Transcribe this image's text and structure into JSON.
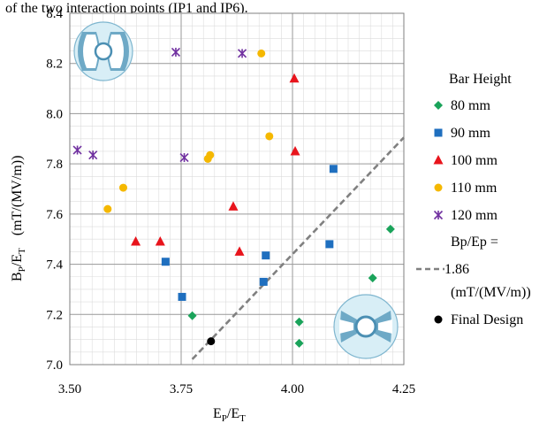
{
  "header_text": "of the two interaction points (IP1 and IP6).",
  "chart_data": {
    "type": "scatter",
    "xlabel": {
      "main": "E",
      "sub1": "P",
      "mid": "/E",
      "sub2": "T"
    },
    "ylabel": {
      "main": "B",
      "sub1": "P",
      "mid": "/E",
      "sub2": "T",
      "units": "(mT/(MV/m))"
    },
    "xlim": [
      3.5,
      4.25
    ],
    "ylim": [
      7.0,
      8.4
    ],
    "x_ticks": [
      "3.50",
      "3.75",
      "4.00",
      "4.25"
    ],
    "y_ticks": [
      "7.0",
      "7.2",
      "7.4",
      "7.6",
      "7.8",
      "8.0",
      "8.2",
      "8.4"
    ],
    "grid": true,
    "legend_title": "Bar Height",
    "series": [
      {
        "name": "80 mm",
        "marker": "diamond",
        "color": "#1aa35a",
        "points": [
          [
            3.775,
            7.195
          ],
          [
            4.015,
            7.17
          ],
          [
            4.015,
            7.085
          ],
          [
            4.18,
            7.345
          ],
          [
            4.22,
            7.54
          ]
        ]
      },
      {
        "name": "90 mm",
        "marker": "square",
        "color": "#1f6fbf",
        "points": [
          [
            3.715,
            7.41
          ],
          [
            3.752,
            7.27
          ],
          [
            3.935,
            7.33
          ],
          [
            3.94,
            7.435
          ],
          [
            4.083,
            7.48
          ],
          [
            4.092,
            7.78
          ]
        ]
      },
      {
        "name": "100 mm",
        "marker": "triangle",
        "color": "#e8141c",
        "points": [
          [
            3.648,
            7.49
          ],
          [
            3.703,
            7.49
          ],
          [
            3.867,
            7.63
          ],
          [
            3.881,
            7.45
          ],
          [
            4.004,
            8.14
          ],
          [
            4.006,
            7.85
          ]
        ]
      },
      {
        "name": "110 mm",
        "marker": "circle",
        "color": "#f5b800",
        "points": [
          [
            3.585,
            7.62
          ],
          [
            3.62,
            7.705
          ],
          [
            3.81,
            7.82
          ],
          [
            3.815,
            7.835
          ],
          [
            3.93,
            8.24
          ],
          [
            3.948,
            7.91
          ]
        ]
      },
      {
        "name": "120 mm",
        "marker": "star",
        "color": "#7030a0",
        "points": [
          [
            3.517,
            7.855
          ],
          [
            3.552,
            7.835
          ],
          [
            3.738,
            8.245
          ],
          [
            3.757,
            7.825
          ],
          [
            3.887,
            8.24
          ]
        ]
      }
    ],
    "fit_line": {
      "name_lines": [
        "Bp/Ep =",
        "1.86",
        "(mT/(MV/m))"
      ],
      "slope": 1.86,
      "color": "#808080",
      "x_range": [
        3.775,
        4.25
      ]
    },
    "final_design": {
      "name": "Final Design",
      "x": 3.817,
      "y": 7.093,
      "color": "#000000"
    }
  }
}
